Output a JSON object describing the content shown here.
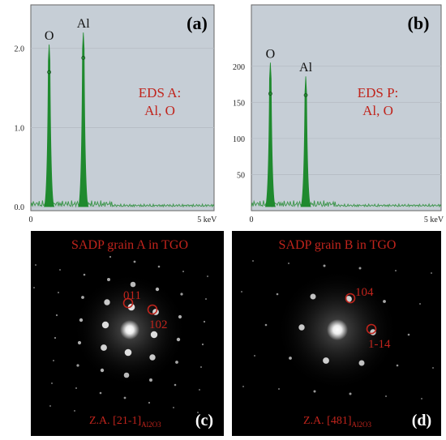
{
  "chart_data": [
    {
      "type": "line",
      "panel_label": "(a)",
      "annotation": [
        "EDS A:",
        "Al, O"
      ],
      "xlabel": "",
      "ylabel": "",
      "x_tick_labels": [
        "0",
        "5 keV"
      ],
      "y_tick_labels": [
        "0.0",
        "1.0",
        "2.0"
      ],
      "x_ticks": [
        0,
        5
      ],
      "y_ticks": [
        0,
        1,
        2
      ],
      "xlim": [
        0,
        5.2
      ],
      "ylim": [
        -0.05,
        2.55
      ],
      "peaks": [
        {
          "element": "O",
          "energy_keV": 0.52,
          "height": 2.05
        },
        {
          "element": "Al",
          "energy_keV": 1.49,
          "height": 2.2
        }
      ],
      "peak_markers": [
        {
          "energy_keV": 0.52,
          "value": 1.7
        },
        {
          "energy_keV": 1.49,
          "value": 1.88
        }
      ],
      "plot_bg": "#c6ced6",
      "line_color": "#1f8a2e",
      "annotation_color": "#c0241c"
    },
    {
      "type": "line",
      "panel_label": "(b)",
      "annotation": [
        "EDS P:",
        "Al, O"
      ],
      "xlabel": "",
      "ylabel": "",
      "x_tick_labels": [
        "0",
        "5 keV"
      ],
      "y_tick_labels": [
        "50",
        "100",
        "150",
        "200"
      ],
      "x_ticks": [
        0,
        5
      ],
      "y_ticks": [
        50,
        100,
        150,
        200
      ],
      "xlim": [
        0,
        5.2
      ],
      "ylim": [
        0,
        285
      ],
      "peaks": [
        {
          "element": "O",
          "energy_keV": 0.52,
          "height": 205
        },
        {
          "element": "Al",
          "energy_keV": 1.49,
          "height": 186
        }
      ],
      "peak_markers": [
        {
          "energy_keV": 0.52,
          "value": 162
        },
        {
          "energy_keV": 1.49,
          "value": 160
        }
      ],
      "plot_bg": "#c6ced6",
      "line_color": "#1f8a2e",
      "annotation_color": "#c0241c"
    }
  ],
  "sadp": [
    {
      "panel_label": "(c)",
      "title": "SADP grain A in TGO",
      "zone_axis_prefix": "Z.A. ",
      "zone_axis_index": "[21-1]",
      "zone_axis_subscript": "Al2O3",
      "spots": [
        {
          "label": "011",
          "circled": true
        },
        {
          "label": "102",
          "circled": true
        }
      ]
    },
    {
      "panel_label": "(d)",
      "title": "SADP grain B in TGO",
      "zone_axis_prefix": "Z.A. ",
      "zone_axis_index": "[481]",
      "zone_axis_subscript": "Al2O3",
      "spots": [
        {
          "label": "104",
          "circled": true
        },
        {
          "label": "1-14",
          "circled": true
        }
      ]
    }
  ]
}
